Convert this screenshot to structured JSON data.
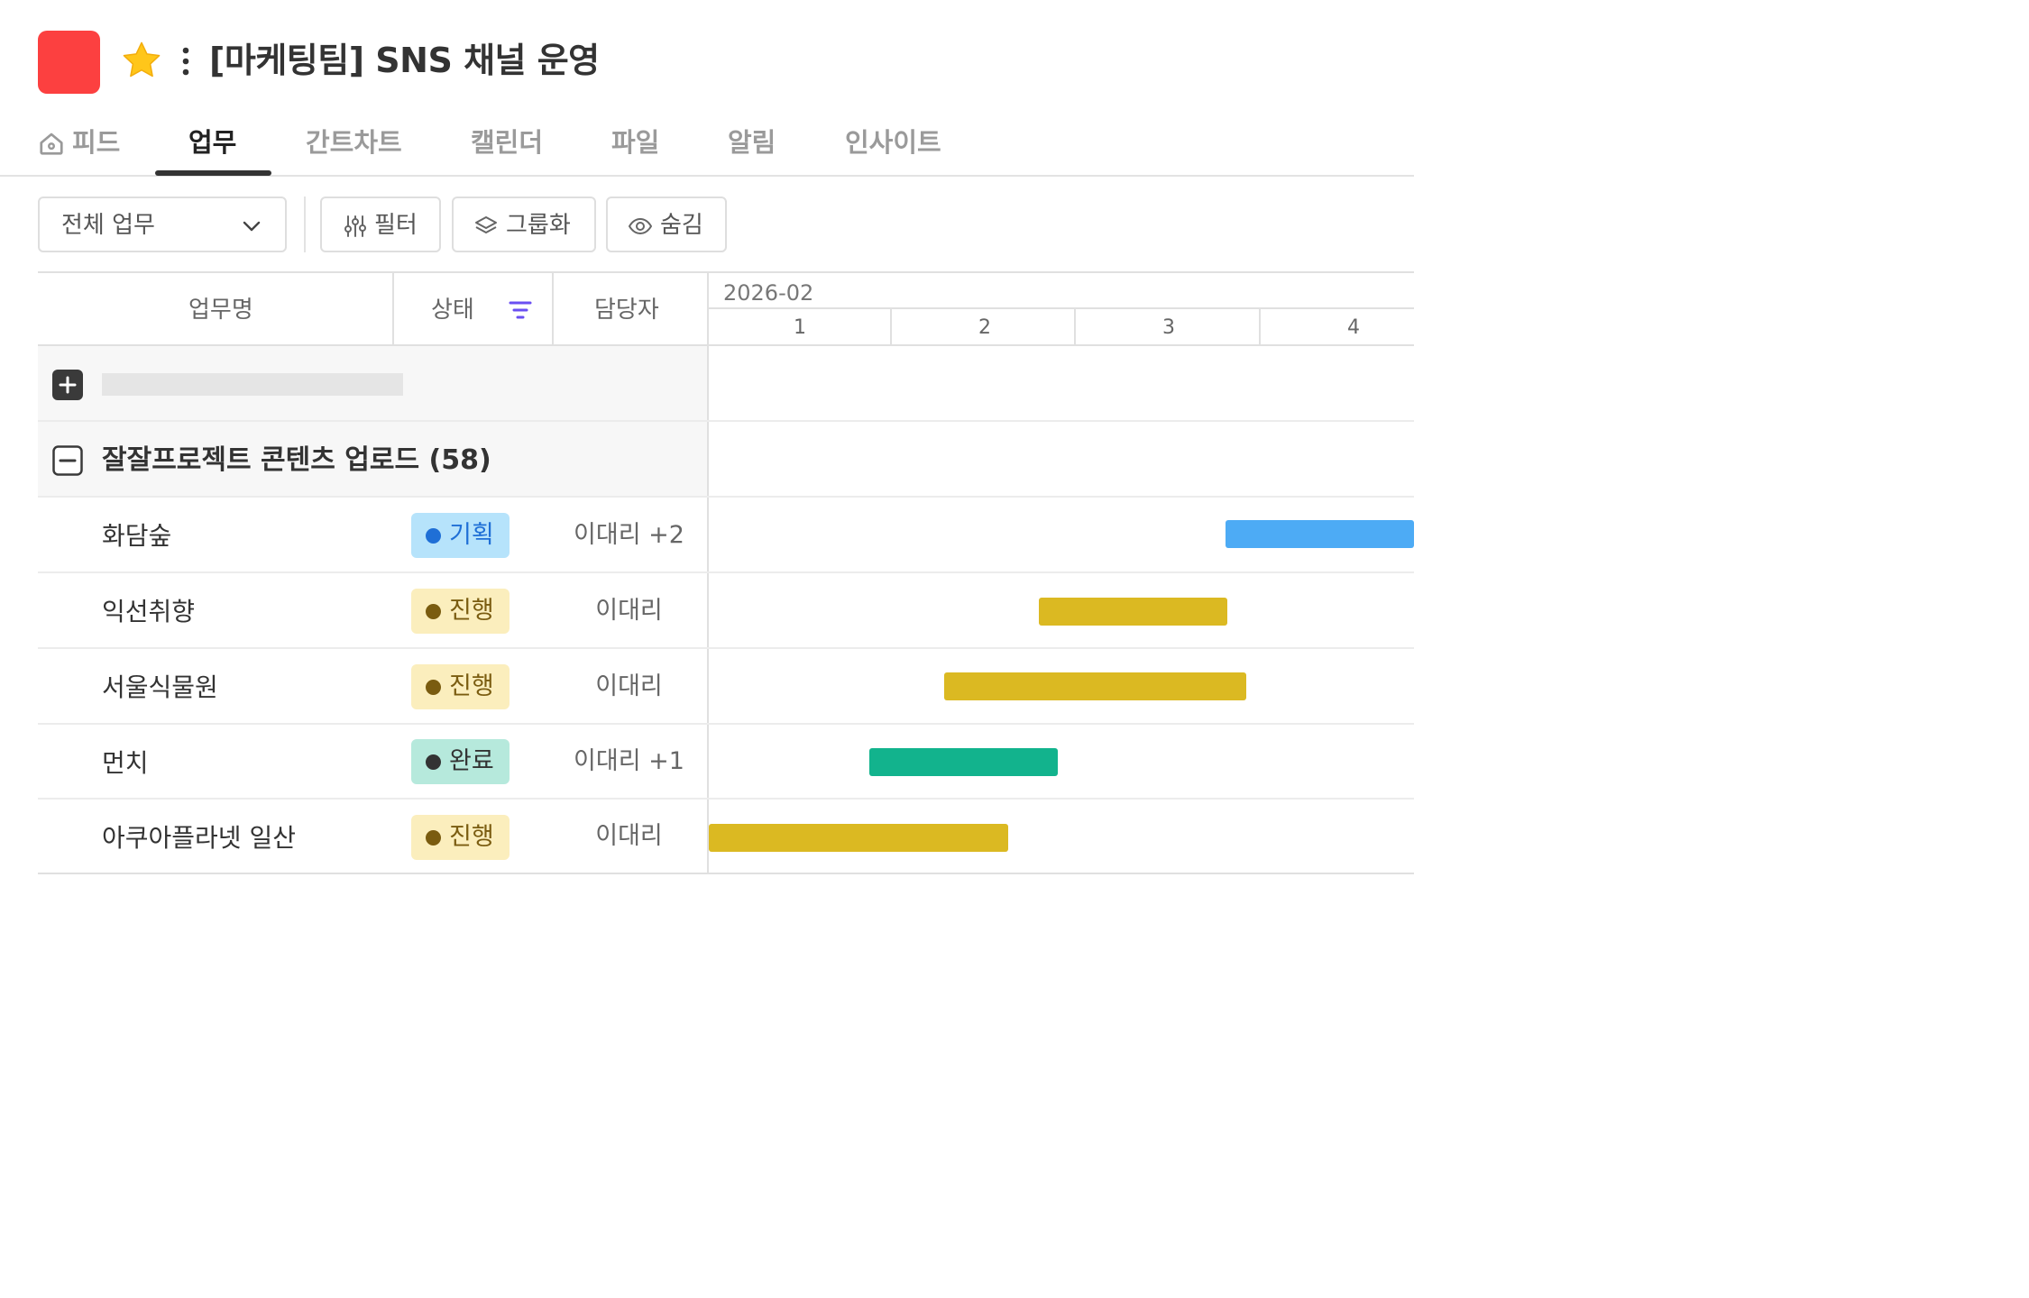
{
  "header": {
    "title": "[마케팅팀] SNS 채널 운영",
    "color": "#fc4040",
    "star_color": "#ffc61a",
    "icons": [
      "star-icon",
      "more-vertical-icon"
    ]
  },
  "tabs": [
    {
      "label": "피드",
      "icon": "home-icon"
    },
    {
      "label": "업무",
      "active": true
    },
    {
      "label": "간트차트"
    },
    {
      "label": "캘린더"
    },
    {
      "label": "파일"
    },
    {
      "label": "알림"
    },
    {
      "label": "인사이트"
    }
  ],
  "toolbar": {
    "scope_select": "전체 업무",
    "filter_label": "필터",
    "group_label": "그룹화",
    "hide_label": "숨김"
  },
  "table": {
    "columns": {
      "task": "업무명",
      "status": "상태",
      "assignee": "담당자"
    },
    "gantt_month": "2026-02",
    "gantt_days": [
      "1",
      "2",
      "3",
      "4"
    ],
    "group": {
      "title": "잘잘프로젝트 콘텐츠 업로드 (58)"
    },
    "rows": [
      {
        "name": "화담숲",
        "status": "기획",
        "assignee": "이대리 +2"
      },
      {
        "name": "익선취향",
        "status": "진행",
        "assignee": "이대리"
      },
      {
        "name": "서울식물원",
        "status": "진행",
        "assignee": "이대리"
      },
      {
        "name": "먼치",
        "status": "완료",
        "assignee": "이대리 +1"
      },
      {
        "name": "아쿠아플라넷 일산",
        "status": "진행",
        "assignee": "이대리"
      }
    ]
  },
  "status_colors": {
    "기획": {
      "bg": "#b6e3fb",
      "dot": "#1f6fd6",
      "text": "#1f6fd6",
      "bar": "#4dabf5"
    },
    "진행": {
      "bg": "#fbeebd",
      "dot": "#7a5c10",
      "text": "#7a5c10",
      "bar": "#dbb922"
    },
    "완료": {
      "bg": "#b6e9dc",
      "dot": "#333333",
      "text": "#333333",
      "bar": "#12b38d"
    }
  }
}
